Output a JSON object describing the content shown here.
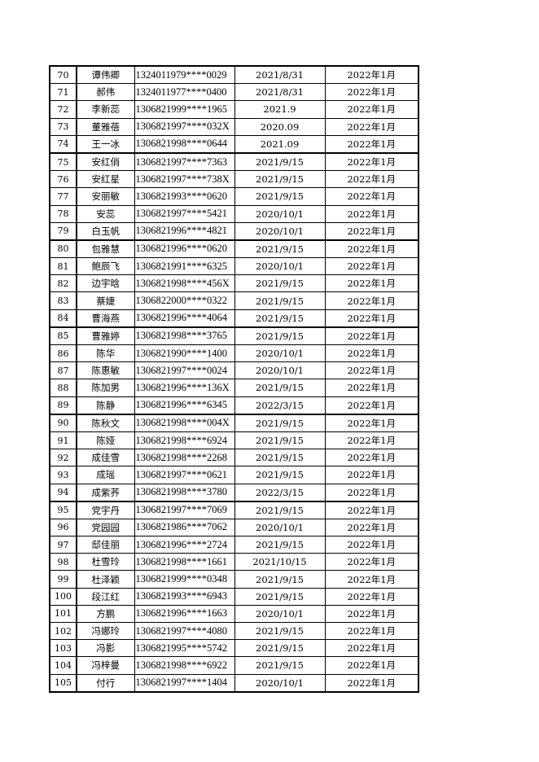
{
  "table": {
    "rows": [
      [
        "70",
        "谭伟卿",
        "1324011979****0029",
        "2021/8/31",
        "2022年1月"
      ],
      [
        "71",
        "郝伟",
        "1324011977****0400",
        "2021/8/31",
        "2022年1月"
      ],
      [
        "72",
        "李新蕊",
        "1306821999****1965",
        "2021.9",
        "2022年1月"
      ],
      [
        "73",
        "董雅蓓",
        "1306821997****032X",
        "2020.09",
        "2022年1月"
      ],
      [
        "74",
        "王一冰",
        "1306821998****0644",
        "2021.09",
        "2022年1月"
      ],
      [
        "75",
        "安红俏",
        "1306821997****7363",
        "2021/9/15",
        "2022年1月"
      ],
      [
        "76",
        "安红星",
        "1306821997****738X",
        "2021/9/15",
        "2022年1月"
      ],
      [
        "77",
        "安丽敏",
        "1306821993****0620",
        "2021/9/15",
        "2022年1月"
      ],
      [
        "78",
        "安蕊",
        "1306821997****5421",
        "2020/10/1",
        "2022年1月"
      ],
      [
        "79",
        "白玉帆",
        "1306821996****4821",
        "2020/10/1",
        "2022年1月"
      ],
      [
        "80",
        "包雅慧",
        "1306821996****0620",
        "2021/9/15",
        "2022年1月"
      ],
      [
        "81",
        "鲍辰飞",
        "1306821991****6325",
        "2020/10/1",
        "2022年1月"
      ],
      [
        "82",
        "边宇晗",
        "1306821998****456X",
        "2021/9/15",
        "2022年1月"
      ],
      [
        "83",
        "蔡婕",
        "1306822000****0322",
        "2021/9/15",
        "2022年1月"
      ],
      [
        "84",
        "曹海燕",
        "1306821996****4064",
        "2021/9/15",
        "2022年1月"
      ],
      [
        "85",
        "曹雅婷",
        "1306821998****3765",
        "2021/9/15",
        "2022年1月"
      ],
      [
        "86",
        "陈华",
        "1306821990****1400",
        "2020/10/1",
        "2022年1月"
      ],
      [
        "87",
        "陈惠敏",
        "1306821997****0024",
        "2020/10/1",
        "2022年1月"
      ],
      [
        "88",
        "陈加男",
        "1306821996****136X",
        "2021/9/15",
        "2022年1月"
      ],
      [
        "89",
        "陈静",
        "1306821996****6345",
        "2022/3/15",
        "2022年1月"
      ],
      [
        "90",
        "陈秋文",
        "1306821998****004X",
        "2021/9/15",
        "2022年1月"
      ],
      [
        "91",
        "陈娅",
        "1306821998****6924",
        "2021/9/15",
        "2022年1月"
      ],
      [
        "92",
        "成佳雪",
        "1306821998****2268",
        "2021/9/15",
        "2022年1月"
      ],
      [
        "93",
        "成瑶",
        "1306821997****0621",
        "2021/9/15",
        "2022年1月"
      ],
      [
        "94",
        "成紫荞",
        "1306821998****3780",
        "2022/3/15",
        "2022年1月"
      ],
      [
        "95",
        "党宇丹",
        "1306821997****7069",
        "2021/9/15",
        "2022年1月"
      ],
      [
        "96",
        "党园园",
        "1306821986****7062",
        "2020/10/1",
        "2022年1月"
      ],
      [
        "97",
        "邸佳丽",
        "1306821996****2724",
        "2021/9/15",
        "2022年1月"
      ],
      [
        "98",
        "杜雪玲",
        "1306821998****1661",
        "2021/10/15",
        "2022年1月"
      ],
      [
        "99",
        "杜泽颖",
        "1306821999****0348",
        "2021/9/15",
        "2022年1月"
      ],
      [
        "100",
        "段江红",
        "1306821993****6943",
        "2021/9/15",
        "2022年1月"
      ],
      [
        "101",
        "方鹏",
        "1306821996****1663",
        "2020/10/1",
        "2022年1月"
      ],
      [
        "102",
        "冯娜玲",
        "1306821997****4080",
        "2021/9/15",
        "2022年1月"
      ],
      [
        "103",
        "冯影",
        "1306821995****5742",
        "2021/9/15",
        "2022年1月"
      ],
      [
        "104",
        "冯梓曼",
        "1306821998****6922",
        "2021/9/15",
        "2022年1月"
      ],
      [
        "105",
        "付行",
        "1306821997****1404",
        "2020/10/1",
        "2022年1月"
      ]
    ]
  }
}
